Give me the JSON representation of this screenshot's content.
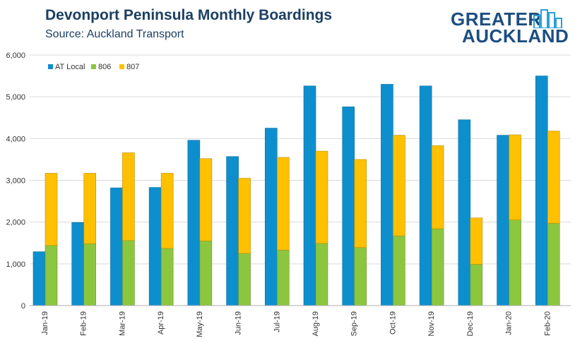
{
  "header": {
    "title": "Devonport Peninsula Monthly Boardings",
    "subtitle": "Source: Auckland Transport"
  },
  "logo": {
    "line1": "GREATER",
    "line2": "AUCKLAND",
    "icon": "city-buildings-icon"
  },
  "colors": {
    "at_local": "#0d8fce",
    "r806": "#8cc63f",
    "r807": "#ffc000",
    "title": "#1c3f63",
    "axis": "#b0b0b0"
  },
  "chart_data": {
    "type": "bar",
    "categories": [
      "Jan-19",
      "Feb-19",
      "Mar-19",
      "Apr-19",
      "May-19",
      "Jun-19",
      "Jul-19",
      "Aug-19",
      "Sep-19",
      "Oct-19",
      "Nov-19",
      "Dec-19",
      "Jan-20",
      "Feb-20"
    ],
    "series": [
      {
        "name": "AT Local",
        "stack": "a",
        "values": [
          1290,
          1990,
          2820,
          2830,
          3960,
          3570,
          4250,
          5260,
          4760,
          5300,
          5260,
          4450,
          4080,
          5500
        ]
      },
      {
        "name": "806",
        "stack": "b",
        "values": [
          1440,
          1480,
          1560,
          1370,
          1550,
          1250,
          1330,
          1490,
          1390,
          1670,
          1840,
          990,
          2050,
          1970
        ]
      },
      {
        "name": "807",
        "stack": "b",
        "values": [
          1730,
          1690,
          2100,
          1800,
          1970,
          1800,
          2220,
          2210,
          2110,
          2410,
          1990,
          1110,
          2040,
          2210
        ]
      }
    ],
    "ylim": [
      0,
      6000
    ],
    "yticks": [
      "0",
      "1,000",
      "2,000",
      "3,000",
      "4,000",
      "5,000",
      "6,000"
    ],
    "grid": true,
    "legend": "top-left"
  }
}
